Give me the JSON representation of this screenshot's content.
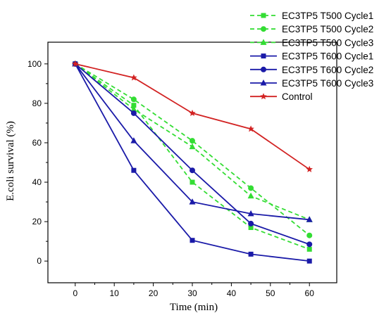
{
  "chart_data": {
    "type": "line",
    "xlabel": "Time (min)",
    "ylabel": "E.coli survival (%)",
    "xlim": [
      -7,
      67
    ],
    "ylim": [
      -11,
      111
    ],
    "x_ticks": [
      0,
      10,
      20,
      30,
      40,
      50,
      60
    ],
    "y_ticks": [
      0,
      20,
      40,
      60,
      80,
      100
    ],
    "grid": false,
    "legend_position": "top-right",
    "x": [
      0,
      15,
      30,
      45,
      60
    ],
    "series": [
      {
        "name": "EC3TP5 T500 Cycle1",
        "values": [
          100,
          79,
          40,
          17,
          6
        ],
        "color": "#33dd33",
        "dash": true,
        "marker": "square"
      },
      {
        "name": "EC3TP5 T500 Cycle2",
        "values": [
          100,
          82,
          61,
          37,
          13
        ],
        "color": "#33dd33",
        "dash": true,
        "marker": "circle"
      },
      {
        "name": "EC3TP5 T500 Cycle3",
        "values": [
          100,
          77,
          58,
          33,
          21
        ],
        "color": "#33dd33",
        "dash": true,
        "marker": "triangle"
      },
      {
        "name": "EC3TP5 T600 Cycle1",
        "values": [
          100,
          46,
          10.5,
          3.5,
          0
        ],
        "color": "#1a1aa8",
        "dash": false,
        "marker": "square"
      },
      {
        "name": "EC3TP5 T600 Cycle2",
        "values": [
          100,
          75,
          46,
          19,
          8.5
        ],
        "color": "#1a1aa8",
        "dash": false,
        "marker": "circle"
      },
      {
        "name": "EC3TP5 T600 Cycle3",
        "values": [
          100,
          61,
          30,
          24,
          21
        ],
        "color": "#1a1aa8",
        "dash": false,
        "marker": "triangle"
      },
      {
        "name": "Control",
        "values": [
          100,
          93,
          75,
          67,
          46.5
        ],
        "color": "#d22222",
        "dash": false,
        "marker": "star"
      }
    ]
  }
}
